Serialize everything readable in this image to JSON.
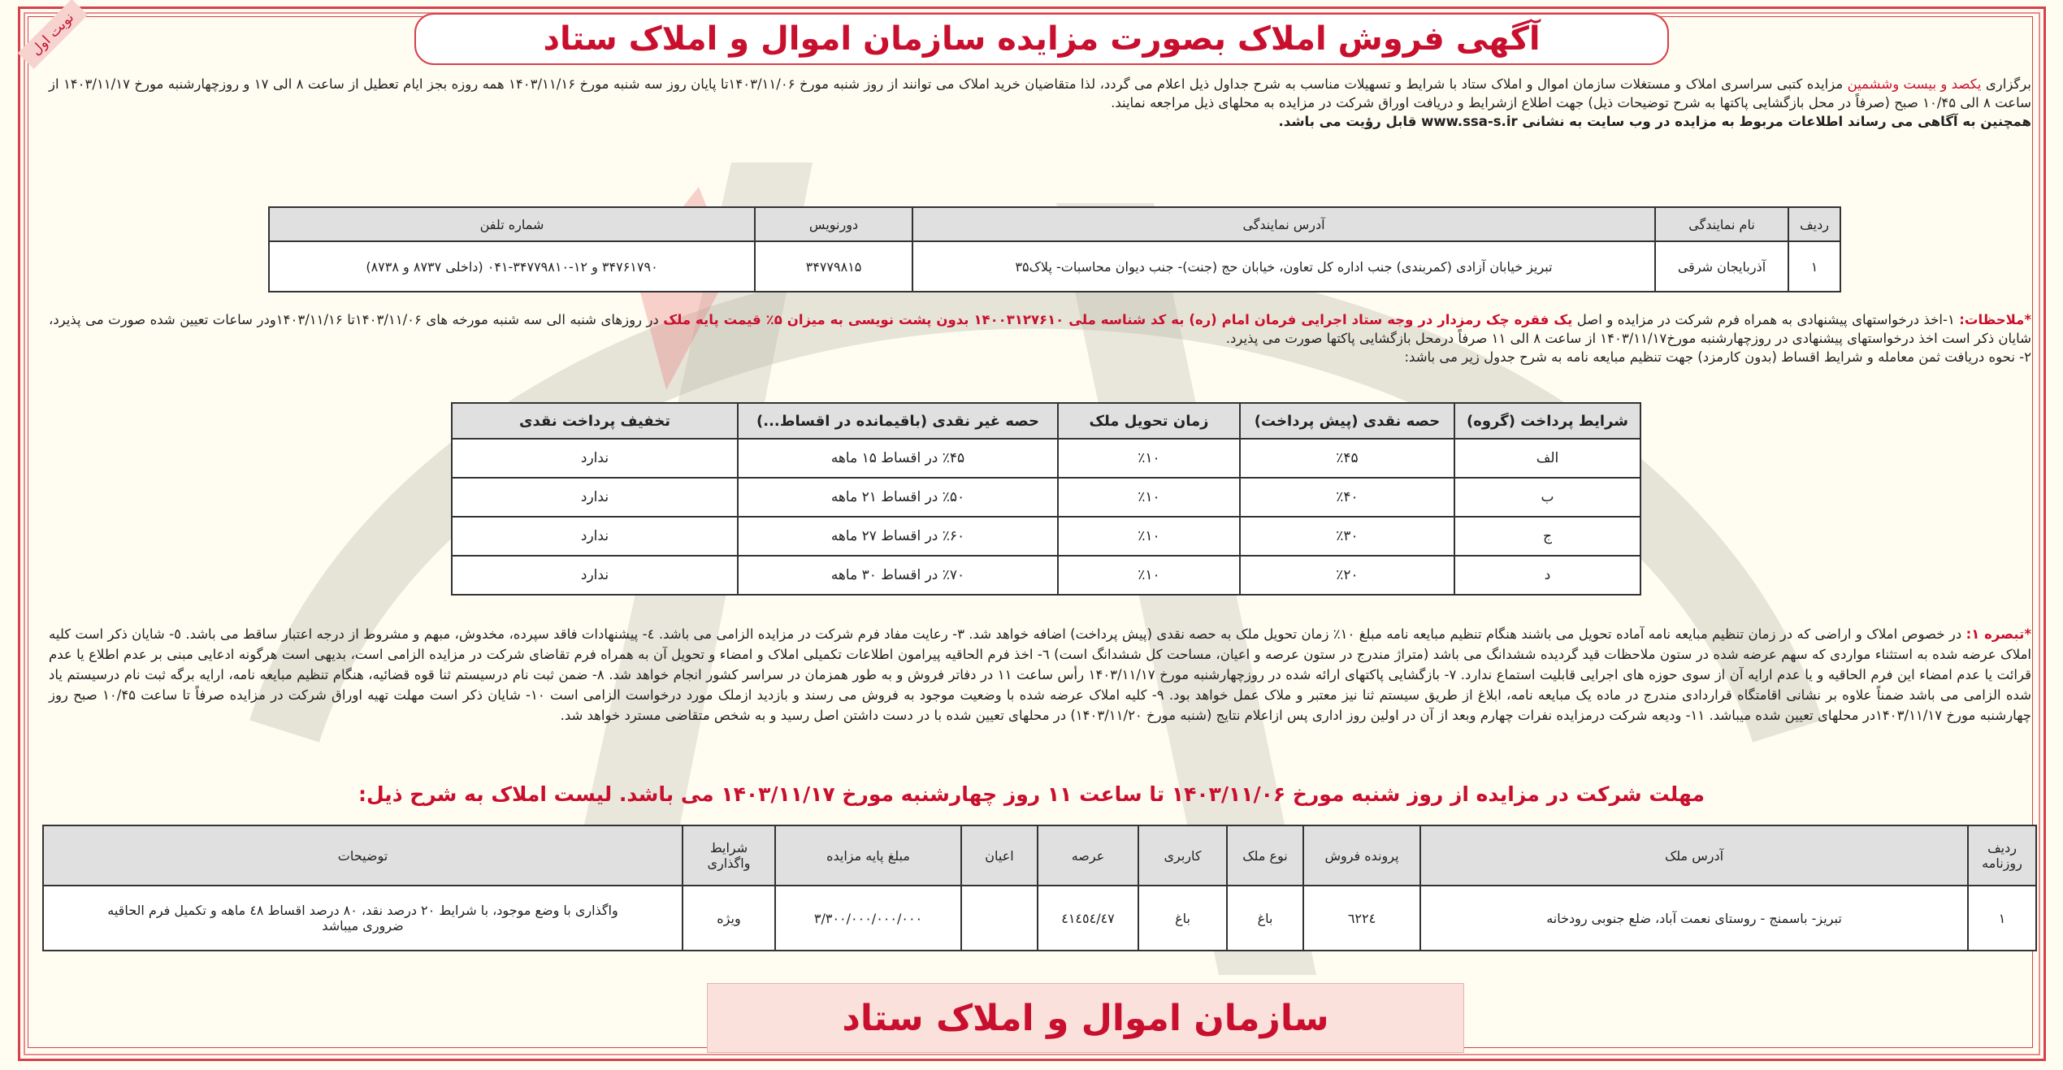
{
  "badge": "نوبت اول",
  "title": "آگهی فروش املاک بصورت مزایده سازمان اموال و املاک ستاد",
  "intro": {
    "p1_a": "برگزاری ",
    "p1_red": "یکصد و بیست وششمین",
    "p1_b": " مزایده کتبی سراسری املاک و مستغلات سازمان اموال و املاک ستاد با شرایط و تسهیلات مناسب به شرح جداول ذیل اعلام می گردد، لذا متقاضیان خرید املاک می توانند از روز شنبه مورخ ۱۴۰۳/۱۱/۰۶تا پایان روز سه شنبه مورخ ۱۴۰۳/۱۱/۱۶ همه روزه بجز ایام تعطیل از ساعت ۸ الی ۱۷ و روزچهارشنبه مورخ ۱۴۰۳/۱۱/۱۷ از ساعت ۸ الی ۱۰/۴۵ صبح (صرفاً در محل بازگشایی پاکتها به شرح توضیحات ذیل) جهت اطلاع ازشرایط و دریافت اوراق شرکت در مزایده به محلهای ذیل مراجعه نمایند.",
    "p2": "همچنین به آگاهی می رساند اطلاعات مربوط به مزایده در وب سایت به نشانی www.ssa-s.ir قابل رؤیت می باشد."
  },
  "offices_table": {
    "headers": [
      "ردیف",
      "نام نمایندگی",
      "آدرس نمایندگی",
      "دورنویس",
      "شماره تلفن"
    ],
    "rows": [
      [
        "۱",
        "آذربایجان شرقی",
        "تبریز خیابان آزادی (کمربندی) جنب اداره کل تعاون، خیابان حج (جنت)- جنب دیوان محاسبات- پلاک۳۵",
        "۳۴۷۷۹۸۱۵",
        "۳۴۷۶۱۷۹۰ و ۱۲-۳۴۷۷۹۸۱۰-۰۴۱ (داخلی ۸۷۳۷ و ۸۷۳۸)"
      ]
    ]
  },
  "notes": {
    "label": "*ملاحظات:",
    "a": " ۱-اخذ درخواستهای پیشنهادی به همراه فرم شرکت در مزایده و اصل ",
    "red": "یک فقره چک رمزدار در وجه ستاد اجرایی فرمان امام (ره) به کد شناسه ملی ۱۴۰۰۳۱۲۷۶۱۰ بدون پشت نویسی به میزان ۵٪ قیمت پایه ملک",
    "b": " در روزهای شنبه الی سه شنبه مورخه های ۱۴۰۳/۱۱/۰۶تا ۱۴۰۳/۱۱/۱۶ودر ساعات تعیین شده صورت می پذیرد، شایان ذکر است اخذ درخواستهای پیشنهادی در روزچهارشنبه مورخ۱۴۰۳/۱۱/۱۷ از ساعت ۸ الی ۱۱ صرفاً درمحل بازگشایی پاکتها صورت می پذیرد.",
    "line2": "۲- نحوه دریافت ثمن معامله و شرایط اقساط (بدون کارمزد) جهت تنظیم مبایعه نامه به شرح جدول زیر می باشد:"
  },
  "payment_table": {
    "headers": [
      "شرایط پرداخت (گروه)",
      "حصه نقدی (پیش پرداخت)",
      "زمان تحویل ملک",
      "حصه غیر نقدی (باقیمانده در اقساط...)",
      "تخفیف پرداخت نقدی"
    ],
    "rows": [
      [
        "الف",
        "٪۴۵",
        "٪۱۰",
        "٪۴۵ در اقساط ۱۵ ماهه",
        "ندارد"
      ],
      [
        "ب",
        "٪۴۰",
        "٪۱۰",
        "٪۵۰ در اقساط ۲۱ ماهه",
        "ندارد"
      ],
      [
        "ج",
        "٪۳۰",
        "٪۱۰",
        "٪۶۰ در اقساط ۲۷ ماهه",
        "ندارد"
      ],
      [
        "د",
        "٪۲۰",
        "٪۱۰",
        "٪۷۰ در اقساط ۳۰ ماهه",
        "ندارد"
      ]
    ]
  },
  "tabsareh": {
    "label": "*تبصره ۱:",
    "text": " در خصوص املاک و اراضی که در زمان تنظیم مبایعه نامه آماده تحویل می باشند هنگام تنظیم مبایعه نامه مبلغ ۱۰٪ زمان تحویل ملک به حصه نقدی (پیش پرداخت) اضافه خواهد شد. ۳- رعایت مفاد فرم شرکت در مزایده الزامی می باشد. ٤- پیشنهادات فاقد سپرده، مخدوش، مبهم و مشروط از درجه اعتبار ساقط می باشد. ٥- شایان ذکر است کلیه املاک عرضه شده به استثناء مواردی که سهم عرضه شده در ستون ملاحظات قید گردیده ششدانگ می باشد (متراژ مندرج در ستون عرصه و اعیان، مساحت کل ششدانگ است) ٦- اخذ فرم الحاقیه پیرامون اطلاعات تکمیلی املاک و امضاء و تحویل آن به همراه فرم تقاضای شرکت در مزایده الزامی است، بدیهی است هرگونه ادعایی مبنی بر عدم اطلاع یا عدم قرائت یا عدم امضاء این فرم الحاقیه و یا عدم ارایه آن از سوی حوزه های اجرایی قابلیت استماع ندارد. ۷- بازگشایی پاکتهای ارائه شده در روزچهارشنبه مورخ ۱۴۰۳/۱۱/۱۷ رأس ساعت ۱۱ در دفاتر فروش و به طور همزمان در سراسر کشور انجام خواهد شد. ۸- ضمن ثبت نام درسیستم ثنا قوه قضائیه، هنگام تنظیم مبایعه نامه، ارایه برگه ثبت نام درسیستم یاد شده الزامی می باشد ضمناً علاوه بر نشانی اقامتگاه قراردادی مندرج در ماده یک مبایعه نامه، ابلاغ از طریق سیستم ثنا نیز معتبر و ملاک عمل خواهد بود. ۹- کلیه املاک عرضه شده با وضعیت موجود به فروش می رسند و بازدید ازملک مورد درخواست الزامی است ۱۰- شایان ذکر است مهلت تهیه اوراق شرکت در مزایده صرفاً تا ساعت ۱۰/۴۵ صبح روز چهارشنبه مورخ ۱۴۰۳/۱۱/۱۷در محلهای تعیین شده میباشد. ۱۱- ودیعه شرکت درمزایده نفرات چهارم وبعد از آن در اولین روز اداری پس ازاعلام نتایج (شنبه مورخ ۱۴۰۳/۱۱/۲۰) در محلهای تعیین شده با در دست داشتن اصل رسید و به شخص متقاضی مسترد خواهد شد."
  },
  "deadline": "مهلت شرکت در مزایده از روز شنبه مورخ ۱۴۰۳/۱۱/۰۶ تا ساعت ۱۱ روز چهارشنبه مورخ ۱۴۰۳/۱۱/۱۷ می باشد. لیست املاک به شرح ذیل:",
  "property_table": {
    "headers": [
      "ردیف روزنامه",
      "آدرس ملک",
      "پرونده فروش",
      "نوع ملک",
      "کاربری",
      "عرصه",
      "اعیان",
      "مبلغ پایه مزایده",
      "شرایط واگذاری",
      "توضیحات"
    ],
    "rows": [
      [
        "۱",
        "تبریز- باسمنج - روستای نعمت آباد، ضلع جنوبی رودخانه",
        "٦۲۲٤",
        "باغ",
        "باغ",
        "٤۱٤٥٤/٤۷",
        "",
        "۳/۳۰۰/۰۰۰/۰۰۰/۰۰۰",
        "ویژه",
        "واگذاری با وضع موجود، با شرایط ۲۰ درصد نقد، ۸۰ درصد اقساط ٤۸ ماهه و تکمیل فرم الحاقیه ضروری میباشد"
      ]
    ]
  },
  "footer": "سازمان اموال و املاک ستاد",
  "colors": {
    "accent_red": "#c8102e",
    "border_red": "#d8404a",
    "background": "#fffdf2",
    "header_gray": "#e0e0e0",
    "footer_pink": "#fbe1dc"
  }
}
